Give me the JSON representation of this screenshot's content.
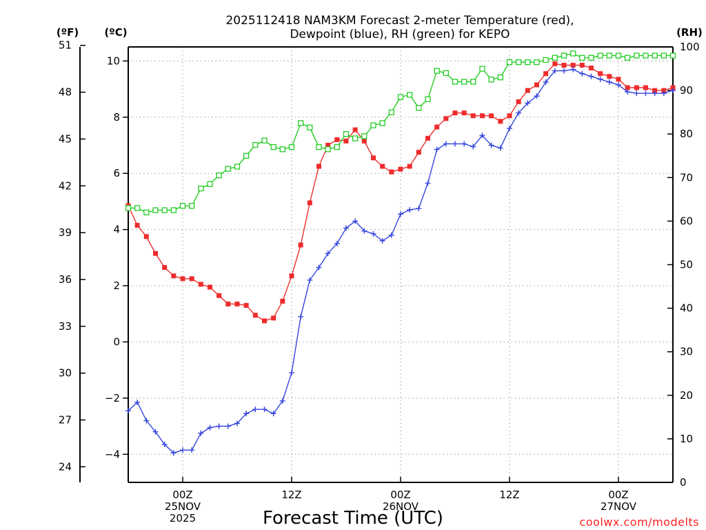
{
  "chart_data": {
    "type": "line",
    "title_line1": "2025112418 NAM3KM Forecast 2-meter Temperature (red),",
    "title_line2": "Dewpoint (blue), RH (green) for KEPO",
    "xlabel": "Forecast Time (UTC)",
    "unit_labels": {
      "fahrenheit": "(ºF)",
      "celsius": "(ºC)",
      "rh": "(RH)"
    },
    "credit": "coolwx.com/modelts",
    "celsius_axis": {
      "range": [
        -5,
        10.5
      ],
      "ticks": [
        -4,
        -2,
        0,
        2,
        4,
        6,
        8,
        10
      ],
      "tick_labels": [
        "−4",
        "−2",
        "0",
        "2",
        "4",
        "6",
        "8",
        "10"
      ]
    },
    "fahrenheit_axis": {
      "ticks": [
        24,
        27,
        30,
        33,
        36,
        39,
        42,
        45,
        48,
        51
      ],
      "tick_labels": [
        "24",
        "27",
        "30",
        "33",
        "36",
        "39",
        "42",
        "45",
        "48",
        "51"
      ]
    },
    "rh_axis": {
      "range": [
        0,
        100
      ],
      "ticks": [
        0,
        10,
        20,
        30,
        40,
        50,
        60,
        70,
        80,
        90,
        100
      ],
      "tick_labels": [
        "0",
        "10",
        "20",
        "30",
        "40",
        "50",
        "60",
        "70",
        "80",
        "90",
        "100"
      ]
    },
    "time_axis": {
      "start_hour": 18,
      "end_hour": 78,
      "step_hours": 1
    },
    "x_ticks": [
      {
        "hour": 24,
        "line1": "00Z",
        "line2": "25NOV",
        "line3": "2025"
      },
      {
        "hour": 36,
        "line1": "12Z",
        "line2": "",
        "line3": ""
      },
      {
        "hour": 48,
        "line1": "00Z",
        "line2": "26NOV",
        "line3": ""
      },
      {
        "hour": 60,
        "line1": "12Z",
        "line2": "",
        "line3": ""
      },
      {
        "hour": 72,
        "line1": "00Z",
        "line2": "27NOV",
        "line3": ""
      }
    ],
    "series": [
      {
        "name": "2-meter Temperature",
        "units": "C",
        "color": "#ee2c2c",
        "marker": "filled-square",
        "values": [
          4.85,
          4.15,
          3.75,
          3.15,
          2.65,
          2.35,
          2.25,
          2.25,
          2.05,
          1.95,
          1.65,
          1.35,
          1.35,
          1.3,
          0.95,
          0.75,
          0.85,
          1.45,
          2.35,
          3.45,
          4.95,
          6.25,
          7.0,
          7.2,
          7.15,
          7.55,
          7.15,
          6.55,
          6.25,
          6.05,
          6.15,
          6.25,
          6.75,
          7.25,
          7.65,
          7.95,
          8.15,
          8.15,
          8.05,
          8.05,
          8.05,
          7.85,
          8.05,
          8.55,
          8.95,
          9.15,
          9.55,
          9.9,
          9.85,
          9.85,
          9.85,
          9.75,
          9.55,
          9.45,
          9.35,
          9.05,
          9.05,
          9.05,
          8.95,
          8.95,
          9.05
        ]
      },
      {
        "name": "Dewpoint",
        "units": "C",
        "color": "#3344dd",
        "marker": "plus",
        "values": [
          -2.45,
          -2.15,
          -2.8,
          -3.2,
          -3.65,
          -3.95,
          -3.85,
          -3.85,
          -3.25,
          -3.05,
          -3.0,
          -3.0,
          -2.9,
          -2.55,
          -2.4,
          -2.4,
          -2.55,
          -2.1,
          -1.1,
          0.9,
          2.2,
          2.65,
          3.15,
          3.5,
          4.05,
          4.3,
          3.95,
          3.85,
          3.6,
          3.8,
          4.55,
          4.7,
          4.75,
          5.65,
          6.85,
          7.05,
          7.05,
          7.05,
          6.95,
          7.35,
          7.0,
          6.9,
          7.6,
          8.15,
          8.5,
          8.75,
          9.25,
          9.65,
          9.65,
          9.7,
          9.55,
          9.45,
          9.35,
          9.25,
          9.15,
          8.9,
          8.85,
          8.85,
          8.85,
          8.85,
          8.95
        ]
      },
      {
        "name": "RH",
        "units": "%",
        "color": "#22cc22",
        "marker": "hollow-square",
        "values": [
          63,
          63,
          62,
          62.5,
          62.5,
          62.5,
          63.5,
          63.5,
          67.5,
          68.5,
          70.5,
          72,
          72.5,
          75,
          77.5,
          78.5,
          77,
          76.5,
          77,
          82.5,
          81.5,
          77,
          76.5,
          77,
          80,
          79,
          79.5,
          82,
          82.5,
          85,
          88.5,
          89,
          86,
          88,
          94.5,
          94,
          92,
          92,
          92,
          95,
          92.5,
          93,
          96.5,
          96.5,
          96.5,
          96.5,
          97,
          97.5,
          98,
          98.5,
          97.5,
          97.5,
          98,
          98,
          98,
          97.5,
          98,
          98,
          98,
          98,
          98
        ]
      }
    ]
  }
}
